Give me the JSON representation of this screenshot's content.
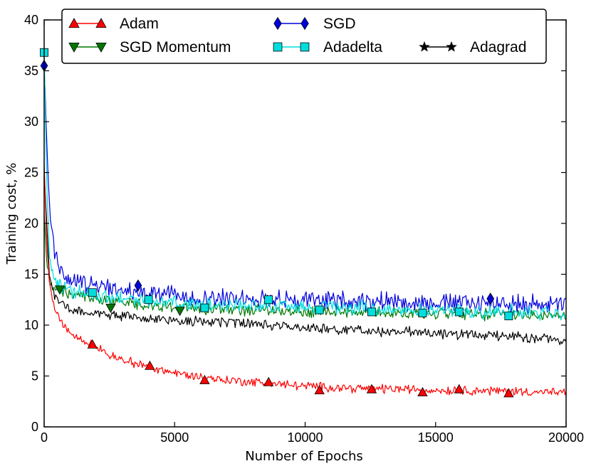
{
  "chart_data": {
    "type": "line",
    "title": "",
    "xlabel": "Number of Epochs",
    "ylabel": "Training cost, %",
    "xlim": [
      0,
      20000
    ],
    "ylim": [
      0,
      40
    ],
    "x_ticks": [
      0,
      5000,
      10000,
      15000,
      20000
    ],
    "x_tick_labels": [
      "0",
      "5000",
      "10000",
      "15000",
      "20000"
    ],
    "y_ticks": [
      0,
      5,
      10,
      15,
      20,
      25,
      30,
      35,
      40
    ],
    "y_tick_labels": [
      "0",
      "5",
      "10",
      "15",
      "20",
      "25",
      "30",
      "35",
      "40"
    ],
    "legend_position": "top",
    "grid": false,
    "series": [
      {
        "name": "Adam",
        "color": "#ff0000",
        "marker": "triangle-up",
        "x": [
          0,
          100,
          200,
          400,
          600,
          800,
          1000,
          1500,
          2000,
          2500,
          3000,
          3500,
          4000,
          5000,
          6000,
          7000,
          8000,
          9000,
          10000,
          11000,
          12000,
          13000,
          14000,
          15000,
          16000,
          17000,
          18000,
          19000,
          20000
        ],
        "y": [
          26,
          18,
          14,
          11.5,
          10.5,
          9.8,
          9.2,
          8.5,
          7.8,
          7.1,
          6.6,
          6.2,
          5.9,
          5.3,
          4.9,
          4.6,
          4.4,
          4.2,
          4.0,
          3.9,
          3.8,
          3.75,
          3.7,
          3.6,
          3.6,
          3.55,
          3.5,
          3.45,
          3.3
        ],
        "markers_x": [
          1850,
          4050,
          6150,
          8600,
          10550,
          12550,
          14500,
          15900,
          17800
        ],
        "markers_y": [
          8.1,
          6.0,
          4.6,
          4.4,
          3.6,
          3.7,
          3.4,
          3.7,
          3.3
        ]
      },
      {
        "name": "SGD Momentum",
        "color": "#007700",
        "marker": "triangle-down",
        "x": [
          0,
          100,
          200,
          400,
          700,
          1000,
          1500,
          2000,
          3000,
          4000,
          5000,
          6000,
          8000,
          10000,
          12000,
          14000,
          16000,
          18000,
          20000
        ],
        "y": [
          21,
          16,
          14.5,
          13.8,
          13.4,
          13.1,
          12.9,
          12.6,
          12.3,
          12.0,
          11.8,
          11.6,
          11.5,
          11.4,
          11.3,
          11.2,
          11.1,
          11.0,
          10.9
        ],
        "markers_x": [
          600,
          2550,
          5200
        ],
        "markers_y": [
          13.5,
          11.7,
          11.4
        ]
      },
      {
        "name": "SGD",
        "color": "#0000dd",
        "marker": "diamond",
        "x": [
          0,
          100,
          200,
          400,
          700,
          1000,
          1500,
          2000,
          3000,
          4000,
          5000,
          6000,
          8000,
          10000,
          12000,
          14000,
          16000,
          18000,
          20000
        ],
        "y": [
          35.5,
          28,
          22,
          17,
          15.2,
          14.5,
          14.0,
          13.7,
          13.4,
          13.1,
          12.9,
          12.7,
          12.6,
          12.5,
          12.4,
          12.3,
          12.2,
          12.1,
          12.0
        ],
        "markers_x": [
          0,
          3600,
          17100
        ],
        "markers_y": [
          35.5,
          13.9,
          12.6
        ]
      },
      {
        "name": "Adadelta",
        "color": "#00dddd",
        "marker": "square",
        "x": [
          0,
          100,
          200,
          400,
          700,
          1000,
          1500,
          2000,
          3000,
          4000,
          5000,
          6000,
          8000,
          10000,
          12000,
          14000,
          16000,
          18000,
          20000
        ],
        "y": [
          36.8,
          24,
          17,
          14.5,
          13.8,
          13.4,
          13.1,
          12.9,
          12.6,
          12.4,
          12.2,
          12.0,
          11.9,
          11.8,
          11.7,
          11.5,
          11.4,
          11.3,
          11.1
        ],
        "markers_x": [
          0,
          1850,
          4000,
          6150,
          8600,
          10550,
          12550,
          14500,
          15900,
          17800
        ],
        "markers_y": [
          36.8,
          13.2,
          12.5,
          11.7,
          12.5,
          11.5,
          11.3,
          11.2,
          11.3,
          10.9
        ]
      },
      {
        "name": "Adagrad",
        "color": "#000000",
        "marker": "star",
        "x": [
          0,
          100,
          200,
          400,
          700,
          1000,
          1500,
          2000,
          3000,
          4000,
          5000,
          6000,
          8000,
          10000,
          12000,
          14000,
          16000,
          18000,
          20000
        ],
        "y": [
          25,
          20,
          15,
          12.8,
          12.0,
          11.6,
          11.3,
          11.1,
          10.9,
          10.7,
          10.5,
          10.4,
          10.1,
          9.8,
          9.5,
          9.3,
          9.1,
          8.9,
          8.6
        ],
        "markers_x": [],
        "markers_y": []
      }
    ]
  }
}
